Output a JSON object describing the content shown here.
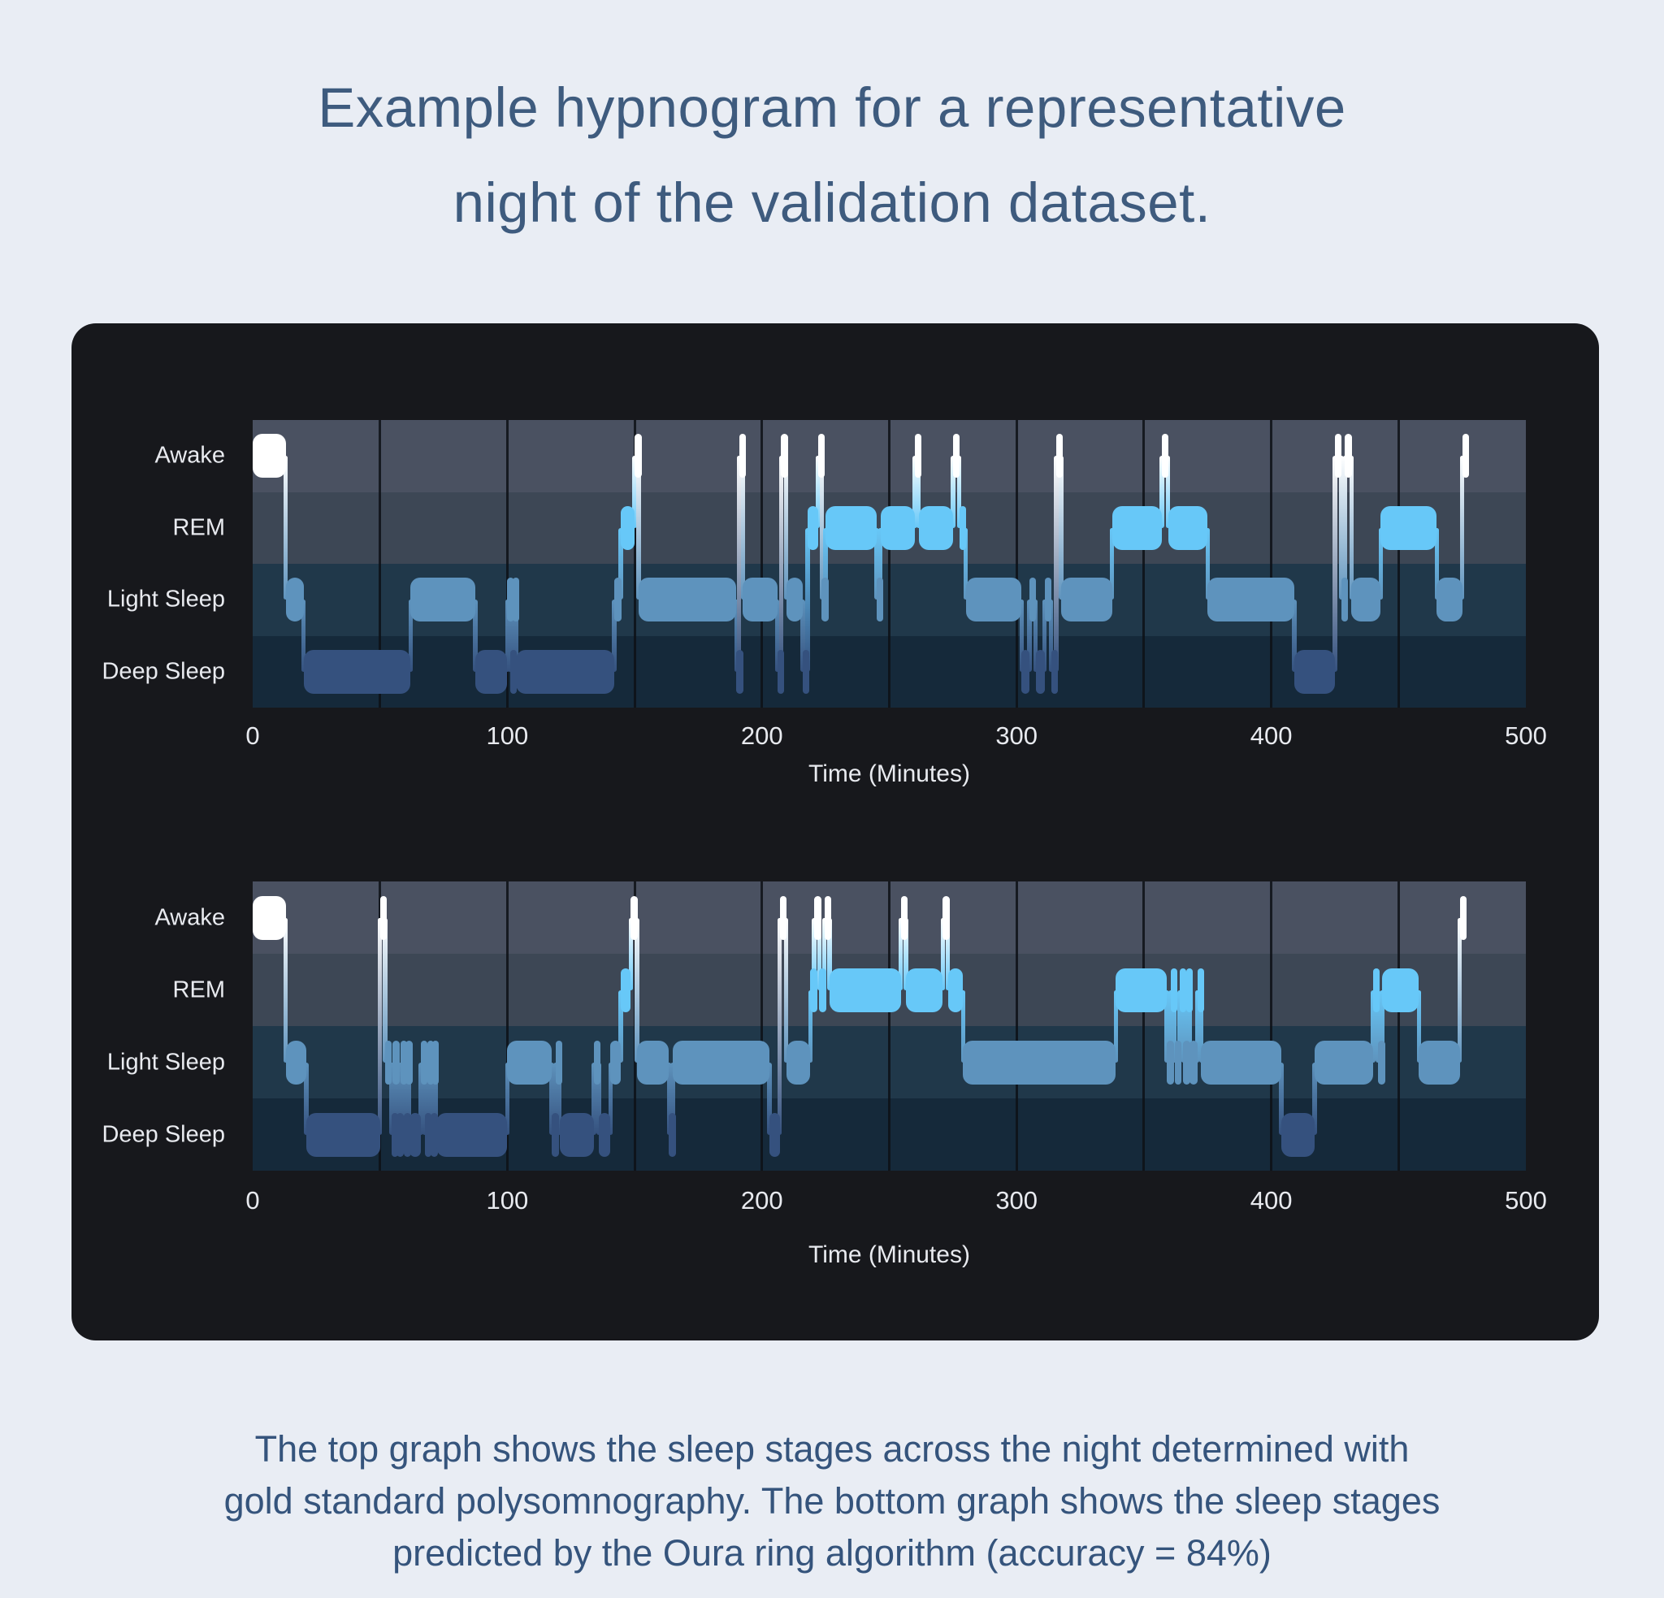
{
  "title": {
    "line1": "Example hypnogram for a representative",
    "line2": "night of the validation dataset."
  },
  "caption": {
    "line1": "The top graph shows the sleep stages across the night determined with",
    "line2": "gold standard polysomnography. The bottom graph shows the sleep stages",
    "line3": "predicted by the Oura ring algorithm (accuracy = 84%)"
  },
  "colors": {
    "page_bg": "#e9edf4",
    "card_bg": "#17181c",
    "title_text": "#3e5b7e",
    "caption_text": "#35547c",
    "axis_text": "#e8eaef",
    "gridline": "#0d1116",
    "band_awake": "#4a5161",
    "band_rem": "#3d4755",
    "band_light": "#20384a",
    "band_deep": "#15293a",
    "trace_awake": "#ffffff",
    "trace_rem": "#67c8f8",
    "trace_light": "#5e93bd",
    "trace_deep": "#35517e"
  },
  "chart_data": [
    {
      "type": "hypnogram-step",
      "name": "top-graph-gold-standard-polysomnography",
      "stage_labels": [
        "Awake",
        "REM",
        "Light Sleep",
        "Deep Sleep"
      ],
      "stage_keys": [
        "awake",
        "rem",
        "light",
        "deep"
      ],
      "xlabel": "Time (Minutes)",
      "xticks": [
        0,
        100,
        200,
        300,
        400,
        500
      ],
      "xlim": [
        0,
        500
      ],
      "grid_interval_minutes": 50,
      "segments": [
        [
          0,
          13,
          "awake"
        ],
        [
          13,
          20,
          "light"
        ],
        [
          20,
          62,
          "deep"
        ],
        [
          62,
          87.5,
          "light"
        ],
        [
          87.5,
          100,
          "deep"
        ],
        [
          100,
          101,
          "light"
        ],
        [
          101,
          102,
          "deep"
        ],
        [
          102,
          103.5,
          "light"
        ],
        [
          103.5,
          142,
          "deep"
        ],
        [
          142,
          144.5,
          "light"
        ],
        [
          144.5,
          150,
          "rem"
        ],
        [
          150,
          151.5,
          "awake"
        ],
        [
          151.5,
          190,
          "light"
        ],
        [
          190,
          191,
          "deep"
        ],
        [
          191,
          192.5,
          "awake"
        ],
        [
          192.5,
          206,
          "light"
        ],
        [
          206,
          207.5,
          "deep"
        ],
        [
          207.5,
          209.5,
          "awake"
        ],
        [
          209.5,
          216,
          "light"
        ],
        [
          216,
          218,
          "deep"
        ],
        [
          218,
          222,
          "rem"
        ],
        [
          222,
          223.5,
          "awake"
        ],
        [
          223.5,
          225,
          "light"
        ],
        [
          225,
          245,
          "rem"
        ],
        [
          245,
          246.5,
          "light"
        ],
        [
          246.5,
          260,
          "rem"
        ],
        [
          260,
          261.5,
          "awake"
        ],
        [
          261.5,
          275,
          "rem"
        ],
        [
          275,
          277.5,
          "awake"
        ],
        [
          277.5,
          280,
          "rem"
        ],
        [
          280,
          302,
          "light"
        ],
        [
          302,
          305,
          "deep"
        ],
        [
          305,
          307.5,
          "light"
        ],
        [
          307.5,
          311,
          "deep"
        ],
        [
          311,
          313.5,
          "light"
        ],
        [
          313.5,
          315.5,
          "deep"
        ],
        [
          315.5,
          317.5,
          "awake"
        ],
        [
          317.5,
          337.5,
          "light"
        ],
        [
          337.5,
          357,
          "rem"
        ],
        [
          357,
          359.5,
          "awake"
        ],
        [
          359.5,
          375,
          "rem"
        ],
        [
          375,
          409,
          "light"
        ],
        [
          409,
          425,
          "deep"
        ],
        [
          425,
          427.5,
          "awake"
        ],
        [
          427.5,
          429,
          "light"
        ],
        [
          429,
          431.5,
          "awake"
        ],
        [
          431.5,
          443,
          "light"
        ],
        [
          443,
          465,
          "rem"
        ],
        [
          465,
          475,
          "light"
        ],
        [
          475,
          477,
          "awake"
        ]
      ]
    },
    {
      "type": "hypnogram-step",
      "name": "bottom-graph-oura-ring-algorithm-predicted",
      "stage_labels": [
        "Awake",
        "REM",
        "Light Sleep",
        "Deep Sleep"
      ],
      "stage_keys": [
        "awake",
        "rem",
        "light",
        "deep"
      ],
      "xlabel": "Time (Minutes)",
      "xticks": [
        0,
        100,
        200,
        300,
        400,
        500
      ],
      "xlim": [
        0,
        500
      ],
      "grid_interval_minutes": 50,
      "segments": [
        [
          0,
          13,
          "awake"
        ],
        [
          13,
          21,
          "light"
        ],
        [
          21,
          50,
          "deep"
        ],
        [
          50,
          52,
          "awake"
        ],
        [
          52,
          54.5,
          "light"
        ],
        [
          54.5,
          55,
          "deep"
        ],
        [
          55,
          56.5,
          "light"
        ],
        [
          56.5,
          58,
          "deep"
        ],
        [
          58,
          59.5,
          "light"
        ],
        [
          59.5,
          60,
          "deep"
        ],
        [
          60,
          61.5,
          "light"
        ],
        [
          61.5,
          66,
          "deep"
        ],
        [
          66,
          67.5,
          "light"
        ],
        [
          67.5,
          68.5,
          "deep"
        ],
        [
          68.5,
          70,
          "light"
        ],
        [
          70,
          70.5,
          "deep"
        ],
        [
          70.5,
          72,
          "light"
        ],
        [
          72,
          100,
          "deep"
        ],
        [
          100,
          117.5,
          "light"
        ],
        [
          117.5,
          119,
          "deep"
        ],
        [
          119,
          120.5,
          "light"
        ],
        [
          120.5,
          134,
          "deep"
        ],
        [
          134,
          136,
          "light"
        ],
        [
          136,
          140.5,
          "deep"
        ],
        [
          140.5,
          144.5,
          "light"
        ],
        [
          144.5,
          148.5,
          "rem"
        ],
        [
          148.5,
          151,
          "awake"
        ],
        [
          151,
          163.5,
          "light"
        ],
        [
          163.5,
          165,
          "deep"
        ],
        [
          165,
          203,
          "light"
        ],
        [
          203,
          207,
          "deep"
        ],
        [
          207,
          209.5,
          "awake"
        ],
        [
          209.5,
          219,
          "light"
        ],
        [
          219,
          220.5,
          "rem"
        ],
        [
          220.5,
          222.5,
          "awake"
        ],
        [
          222.5,
          224.5,
          "rem"
        ],
        [
          224.5,
          226.5,
          "awake"
        ],
        [
          226.5,
          254.5,
          "rem"
        ],
        [
          254.5,
          256.5,
          "awake"
        ],
        [
          256.5,
          271,
          "rem"
        ],
        [
          271,
          273,
          "awake"
        ],
        [
          273,
          279,
          "rem"
        ],
        [
          279,
          339,
          "light"
        ],
        [
          339,
          359,
          "rem"
        ],
        [
          359,
          360.5,
          "light"
        ],
        [
          360.5,
          362,
          "rem"
        ],
        [
          362,
          364,
          "light"
        ],
        [
          364,
          365.5,
          "rem"
        ],
        [
          365.5,
          366.5,
          "light"
        ],
        [
          366.5,
          368,
          "rem"
        ],
        [
          368,
          371,
          "light"
        ],
        [
          371,
          372.5,
          "rem"
        ],
        [
          372.5,
          404,
          "light"
        ],
        [
          404,
          417,
          "deep"
        ],
        [
          417,
          440,
          "light"
        ],
        [
          440,
          442,
          "rem"
        ],
        [
          442,
          443.5,
          "light"
        ],
        [
          443.5,
          458,
          "rem"
        ],
        [
          458,
          474,
          "light"
        ],
        [
          474,
          476.5,
          "awake"
        ]
      ]
    }
  ]
}
